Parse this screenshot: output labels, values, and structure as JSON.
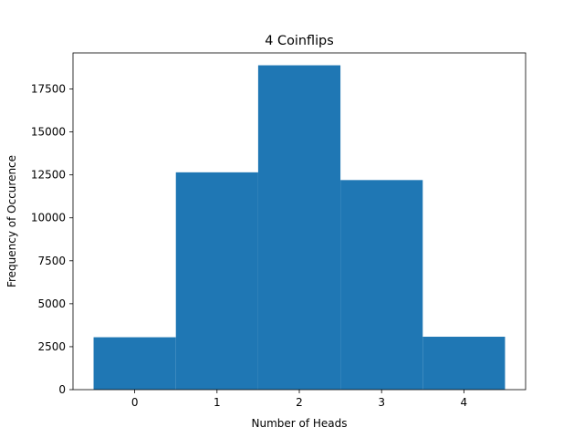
{
  "chart_data": {
    "type": "bar",
    "title": "4 Coinflips",
    "xlabel": "Number of Heads",
    "ylabel": "Frequency of Occurence",
    "categories": [
      "0",
      "1",
      "2",
      "3",
      "4"
    ],
    "x": [
      0,
      1,
      2,
      3,
      4
    ],
    "values": [
      3050,
      12650,
      18880,
      12200,
      3080
    ],
    "bar_width": 1.0,
    "xlim": [
      -0.75,
      4.75
    ],
    "ylim": [
      0,
      19600
    ],
    "xticks": [
      0,
      1,
      2,
      3,
      4
    ],
    "xtick_labels": [
      "0",
      "1",
      "2",
      "3",
      "4"
    ],
    "yticks": [
      0,
      2500,
      5000,
      7500,
      10000,
      12500,
      15000,
      17500
    ],
    "ytick_labels": [
      "0",
      "2500",
      "5000",
      "7500",
      "10000",
      "12500",
      "15000",
      "17500"
    ],
    "grid": false,
    "bar_color": "#1f77b4"
  }
}
